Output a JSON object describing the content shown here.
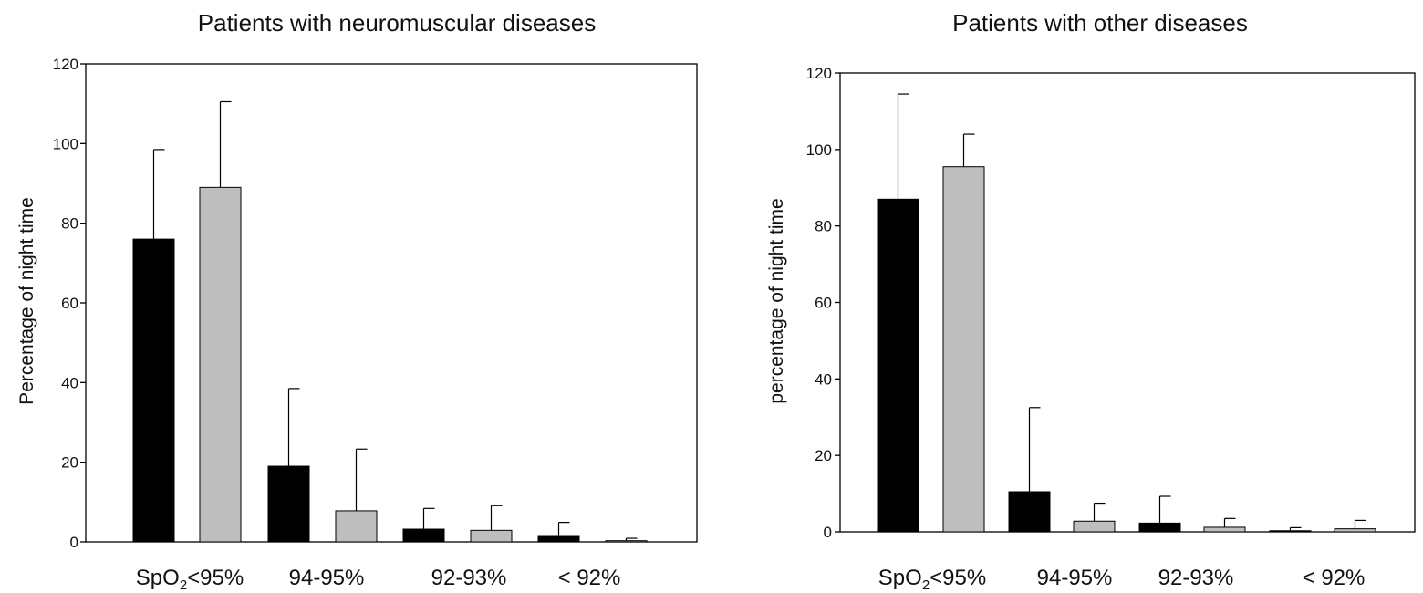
{
  "colors": {
    "series_dark": "#000000",
    "series_light": "#bebebe",
    "axis": "#000000"
  },
  "chart_data": [
    {
      "type": "bar",
      "title": "Patients with neuromuscular diseases",
      "xlabel": "",
      "ylabel": "Percentage of night time",
      "ylim": [
        0,
        120
      ],
      "yticks": [
        0,
        20,
        40,
        60,
        80,
        100,
        120
      ],
      "categories": [
        {
          "prefix": "SpO",
          "sub": "2",
          "suffix": "<95%"
        },
        {
          "prefix": "94-95%",
          "sub": "",
          "suffix": ""
        },
        {
          "prefix": "92-93%",
          "sub": "",
          "suffix": ""
        },
        {
          "prefix": "< 92%",
          "sub": "",
          "suffix": ""
        }
      ],
      "series": [
        {
          "color": "#000000",
          "values": [
            76,
            19,
            3.2,
            1.6
          ],
          "error": [
            22.5,
            19.5,
            5.2,
            3.3
          ]
        },
        {
          "color": "#bebebe",
          "values": [
            89,
            7.8,
            2.9,
            0.3
          ],
          "error": [
            21.5,
            15.5,
            6.2,
            0.6
          ]
        }
      ],
      "grid": false,
      "legend": "none"
    },
    {
      "type": "bar",
      "title": "Patients with other diseases",
      "xlabel": "",
      "ylabel": "percentage of night time",
      "ylim": [
        0,
        120
      ],
      "yticks": [
        0,
        20,
        40,
        60,
        80,
        100,
        120
      ],
      "categories": [
        {
          "prefix": "SpO",
          "sub": "2",
          "suffix": "<95%"
        },
        {
          "prefix": "94-95%",
          "sub": "",
          "suffix": ""
        },
        {
          "prefix": "92-93%",
          "sub": "",
          "suffix": ""
        },
        {
          "prefix": "< 92%",
          "sub": "",
          "suffix": ""
        }
      ],
      "series": [
        {
          "color": "#000000",
          "values": [
            87,
            10.5,
            2.3,
            0.3
          ],
          "error": [
            27.5,
            22,
            7,
            0.8
          ]
        },
        {
          "color": "#bebebe",
          "values": [
            95.5,
            2.8,
            1.2,
            0.8
          ],
          "error": [
            8.5,
            4.7,
            2.3,
            2.2
          ]
        }
      ],
      "grid": false,
      "legend": "none"
    }
  ]
}
